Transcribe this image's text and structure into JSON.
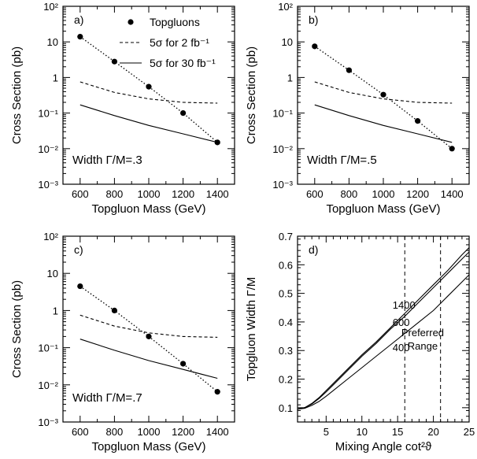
{
  "chart_data": [
    {
      "type": "line",
      "panel_label": "a)",
      "xlabel": "Topgluon Mass (GeV)",
      "ylabel": "Cross Section (pb)",
      "xlim": [
        500,
        1500
      ],
      "ylim": [
        0.001,
        100
      ],
      "yscale": "log",
      "x_ticks": [
        "600",
        "800",
        "1000",
        "1200",
        "1400"
      ],
      "y_ticks": [
        "10^-3",
        "10^-2",
        "10^-1",
        "1",
        "10",
        "10^2"
      ],
      "annotation": "Width Γ/M=.3",
      "legend": {
        "position": "top-right",
        "entries": [
          {
            "label": "Topgluons",
            "style": "dots-dotted"
          },
          {
            "label": "5σ for 2 fb⁻¹",
            "style": "dashed"
          },
          {
            "label": "5σ for 30 fb⁻¹",
            "style": "solid"
          }
        ]
      },
      "series": [
        {
          "x": [
            600,
            800,
            1000,
            1200,
            1400
          ],
          "y": [
            14,
            2.8,
            0.55,
            0.1,
            0.015
          ],
          "style": "dots-dotted"
        },
        {
          "x": [
            600,
            800,
            1000,
            1200,
            1400
          ],
          "y": [
            0.75,
            0.38,
            0.25,
            0.2,
            0.19
          ],
          "style": "dashed"
        },
        {
          "x": [
            600,
            800,
            1000,
            1200,
            1400
          ],
          "y": [
            0.17,
            0.085,
            0.045,
            0.026,
            0.015
          ],
          "style": "solid"
        }
      ]
    },
    {
      "type": "line",
      "panel_label": "b)",
      "xlabel": "Topgluon Mass (GeV)",
      "ylabel": "Cross Section (pb)",
      "xlim": [
        500,
        1500
      ],
      "ylim": [
        0.001,
        100
      ],
      "yscale": "log",
      "x_ticks": [
        "600",
        "800",
        "1000",
        "1200",
        "1400"
      ],
      "y_ticks": [
        "10^-3",
        "10^-2",
        "10^-1",
        "1",
        "10",
        "10^2"
      ],
      "annotation": "Width Γ/M=.5",
      "series": [
        {
          "x": [
            600,
            800,
            1000,
            1200,
            1400
          ],
          "y": [
            7.5,
            1.6,
            0.33,
            0.06,
            0.01
          ],
          "style": "dots-dotted"
        },
        {
          "x": [
            600,
            800,
            1000,
            1200,
            1400
          ],
          "y": [
            0.75,
            0.38,
            0.25,
            0.2,
            0.19
          ],
          "style": "dashed"
        },
        {
          "x": [
            600,
            800,
            1000,
            1200,
            1400
          ],
          "y": [
            0.17,
            0.085,
            0.045,
            0.026,
            0.015
          ],
          "style": "solid"
        }
      ]
    },
    {
      "type": "line",
      "panel_label": "c)",
      "xlabel": "Topgluon Mass (GeV)",
      "ylabel": "Cross Section (pb)",
      "xlim": [
        500,
        1500
      ],
      "ylim": [
        0.001,
        100
      ],
      "yscale": "log",
      "x_ticks": [
        "600",
        "800",
        "1000",
        "1200",
        "1400"
      ],
      "y_ticks": [
        "10^-3",
        "10^-2",
        "10^-1",
        "1",
        "10",
        "10^2"
      ],
      "annotation": "Width Γ/M=.7",
      "series": [
        {
          "x": [
            600,
            800,
            1000,
            1200,
            1400
          ],
          "y": [
            4.5,
            1.0,
            0.2,
            0.037,
            0.0065
          ],
          "style": "dots-dotted"
        },
        {
          "x": [
            600,
            800,
            1000,
            1200,
            1400
          ],
          "y": [
            0.75,
            0.38,
            0.25,
            0.2,
            0.19
          ],
          "style": "dashed"
        },
        {
          "x": [
            600,
            800,
            1000,
            1200,
            1400
          ],
          "y": [
            0.17,
            0.085,
            0.045,
            0.026,
            0.015
          ],
          "style": "solid"
        }
      ]
    },
    {
      "type": "line",
      "panel_label": "d)",
      "xlabel": "Mixing Angle cot²ϑ",
      "ylabel": "Topgluon Width Γ/M",
      "xlim": [
        1,
        25
      ],
      "ylim": [
        0.05,
        0.7
      ],
      "yscale": "linear",
      "x_ticks": [
        "5",
        "10",
        "15",
        "20",
        "25"
      ],
      "y_ticks": [
        "0.1",
        "0.2",
        "0.3",
        "0.4",
        "0.5",
        "0.6",
        "0.7"
      ],
      "preferred_range": {
        "x": [
          16,
          21
        ],
        "label": "Preferred\nRange"
      },
      "series": [
        {
          "name": "1400",
          "x": [
            1,
            2,
            3,
            4,
            5,
            6,
            8,
            10,
            12,
            14,
            16,
            18,
            20,
            22,
            24,
            25
          ],
          "y": [
            0.095,
            0.1,
            0.115,
            0.135,
            0.16,
            0.185,
            0.235,
            0.285,
            0.33,
            0.38,
            0.43,
            0.48,
            0.53,
            0.58,
            0.635,
            0.66
          ]
        },
        {
          "name": "600",
          "x": [
            1,
            2,
            3,
            4,
            5,
            6,
            8,
            10,
            12,
            14,
            16,
            18,
            20,
            22,
            24,
            25
          ],
          "y": [
            0.095,
            0.1,
            0.113,
            0.132,
            0.155,
            0.18,
            0.23,
            0.28,
            0.325,
            0.375,
            0.42,
            0.47,
            0.52,
            0.57,
            0.62,
            0.645
          ]
        },
        {
          "name": "400",
          "x": [
            1,
            2,
            3,
            4,
            5,
            6,
            8,
            10,
            12,
            14,
            16,
            18,
            20,
            22,
            24,
            25
          ],
          "y": [
            0.095,
            0.098,
            0.108,
            0.122,
            0.14,
            0.16,
            0.2,
            0.24,
            0.28,
            0.32,
            0.36,
            0.4,
            0.44,
            0.49,
            0.54,
            0.565
          ]
        }
      ]
    }
  ]
}
